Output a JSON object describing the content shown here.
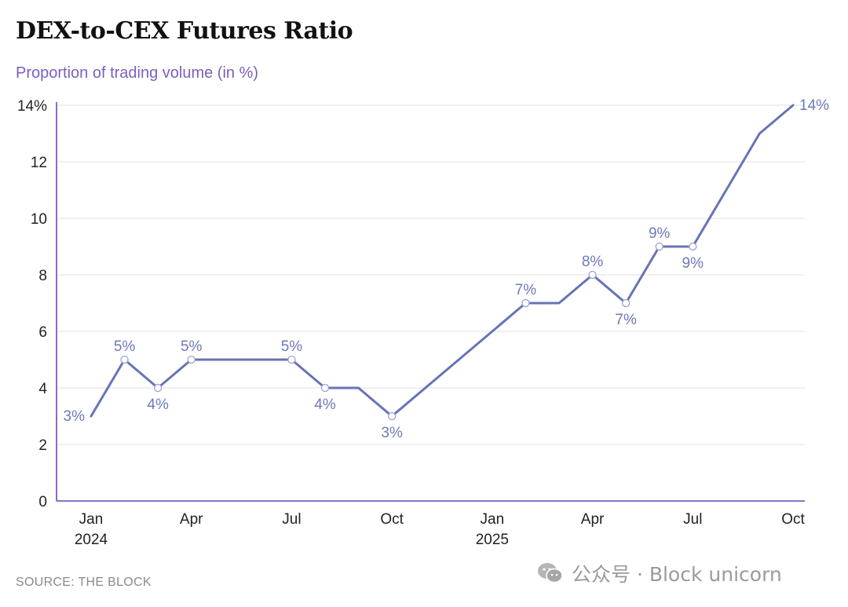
{
  "colors": {
    "line": "#6674b6",
    "label": "#6e79b9",
    "axis": "#7b5fbf",
    "grid": "#e2e2e2",
    "subtitle": "#7b5fbf"
  },
  "watermark": {
    "icon": "wechat-icon",
    "text": "公众号 · Block unicorn"
  },
  "source": "SOURCE: THE BLOCK",
  "chart_data": {
    "type": "line",
    "title": "DEX-to-CEX Futures Ratio",
    "subtitle": "Proportion of trading volume (in %)",
    "xlabel": "",
    "ylabel": "",
    "ylim": [
      0,
      14
    ],
    "yticks": [
      "0",
      "2",
      "4",
      "6",
      "8",
      "10",
      "12",
      "14%"
    ],
    "grid": true,
    "legend": "none",
    "x_tick_labels": [
      {
        "month": "2024-01",
        "line1": "Jan",
        "line2": "2024"
      },
      {
        "month": "2024-04",
        "line1": "Apr",
        "line2": ""
      },
      {
        "month": "2024-07",
        "line1": "Jul",
        "line2": ""
      },
      {
        "month": "2024-10",
        "line1": "Oct",
        "line2": ""
      },
      {
        "month": "2025-01",
        "line1": "Jan",
        "line2": "2025"
      },
      {
        "month": "2025-04",
        "line1": "Apr",
        "line2": ""
      },
      {
        "month": "2025-07",
        "line1": "Jul",
        "line2": ""
      },
      {
        "month": "2025-10",
        "line1": "Oct",
        "line2": ""
      }
    ],
    "series": [
      {
        "x": [
          "2024-01",
          "2024-02",
          "2024-03",
          "2024-04",
          "2024-05",
          "2024-06",
          "2024-07",
          "2024-08",
          "2024-09",
          "2024-10",
          "2024-11",
          "2024-12",
          "2025-01",
          "2025-02",
          "2025-03",
          "2025-04",
          "2025-05",
          "2025-06",
          "2025-07",
          "2025-08",
          "2025-09",
          "2025-10"
        ],
        "values": [
          3,
          5,
          4,
          5,
          5,
          5,
          5,
          4,
          4,
          3,
          4,
          5,
          6,
          7,
          7,
          8,
          7,
          9,
          9,
          11,
          13,
          14
        ]
      }
    ],
    "data_labels": [
      {
        "x": "2024-01",
        "text": "3%",
        "position": "left"
      },
      {
        "x": "2024-02",
        "text": "5%",
        "position": "above"
      },
      {
        "x": "2024-03",
        "text": "4%",
        "position": "below"
      },
      {
        "x": "2024-04",
        "text": "5%",
        "position": "above"
      },
      {
        "x": "2024-07",
        "text": "5%",
        "position": "above"
      },
      {
        "x": "2024-08",
        "text": "4%",
        "position": "below"
      },
      {
        "x": "2024-10",
        "text": "3%",
        "position": "below"
      },
      {
        "x": "2025-02",
        "text": "7%",
        "position": "above"
      },
      {
        "x": "2025-04",
        "text": "8%",
        "position": "above"
      },
      {
        "x": "2025-05",
        "text": "7%",
        "position": "below"
      },
      {
        "x": "2025-06",
        "text": "9%",
        "position": "above"
      },
      {
        "x": "2025-07",
        "text": "9%",
        "position": "below"
      },
      {
        "x": "2025-10",
        "text": "14%",
        "position": "right"
      }
    ]
  }
}
